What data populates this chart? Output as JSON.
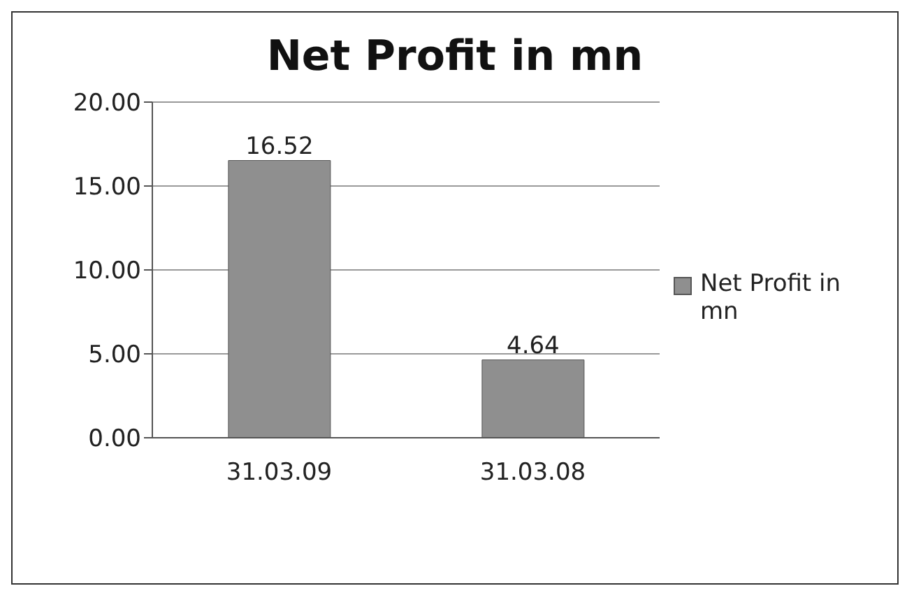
{
  "chart_data": {
    "type": "bar",
    "title": "Net Profit in mn",
    "categories": [
      "31.03.09",
      "31.03.08"
    ],
    "series": [
      {
        "name": "Net Profit in mn",
        "color": "#8f8f8f",
        "values": [
          16.52,
          4.64
        ]
      }
    ],
    "ylim": [
      0,
      20
    ],
    "yticks": [
      {
        "value": 0,
        "label": "0.00"
      },
      {
        "value": 5,
        "label": "5.00"
      },
      {
        "value": 10,
        "label": "10.00"
      },
      {
        "value": 15,
        "label": "15.00"
      },
      {
        "value": 20,
        "label": "20.00"
      }
    ],
    "grid": "y",
    "legend": "right",
    "data_labels": true
  }
}
